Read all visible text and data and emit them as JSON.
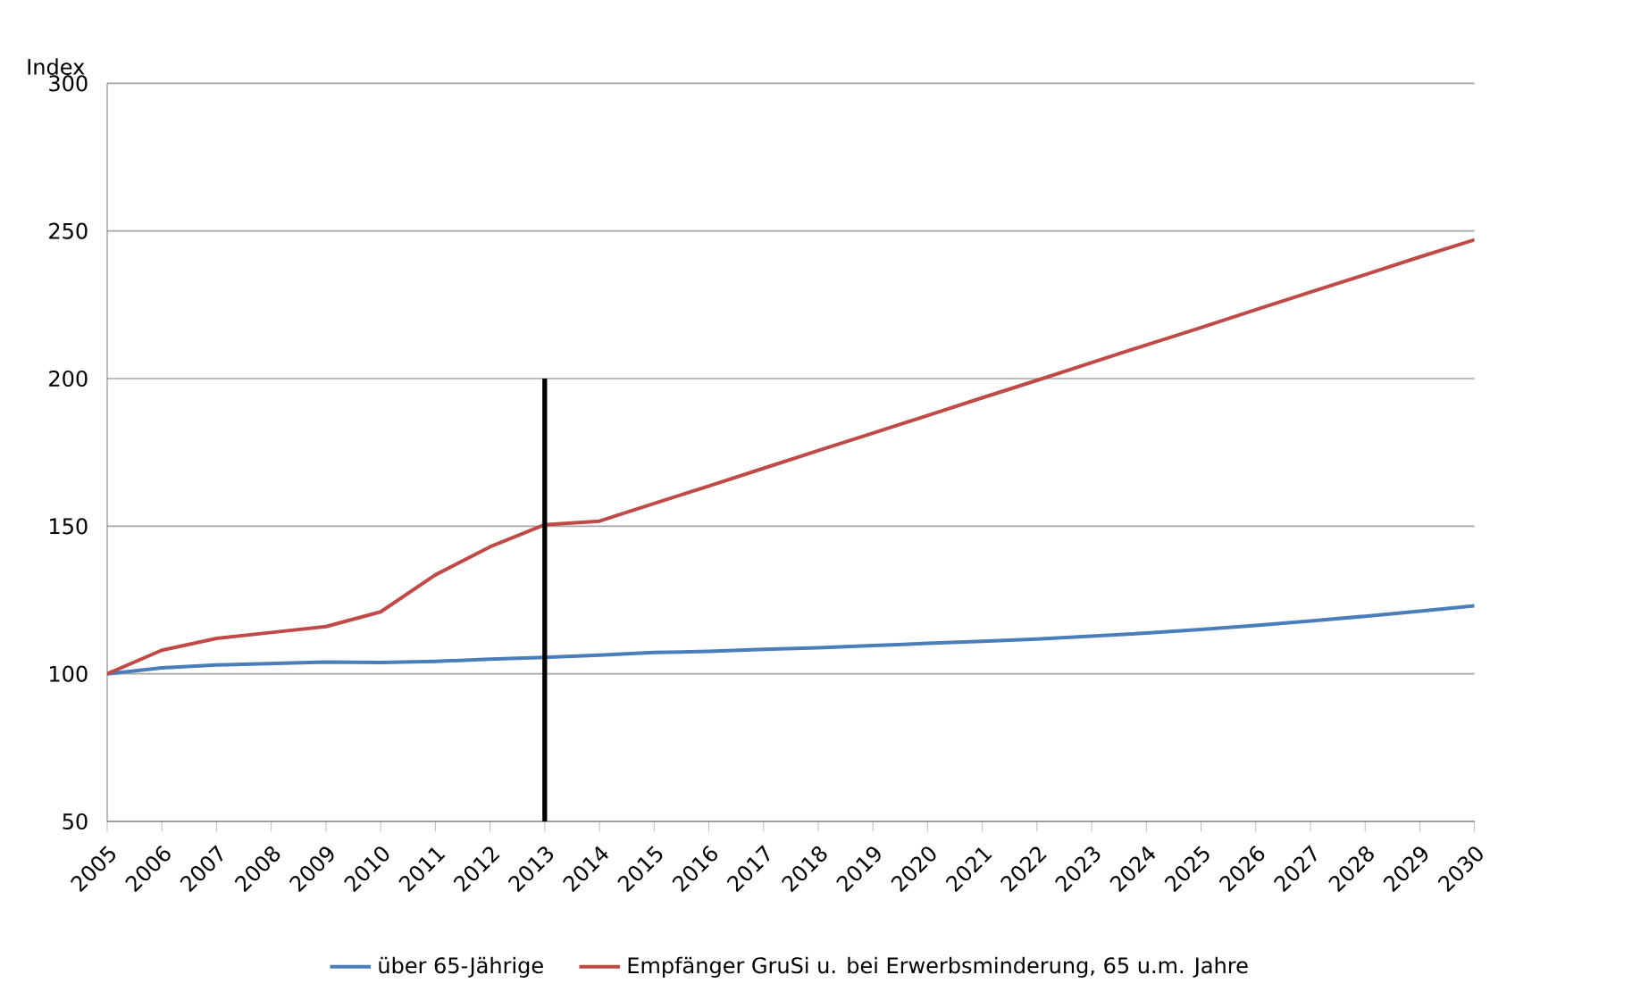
{
  "chart_data": {
    "type": "line",
    "ylabel": "Index",
    "x": [
      2005,
      2006,
      2007,
      2008,
      2009,
      2010,
      2011,
      2012,
      2013,
      2014,
      2015,
      2016,
      2017,
      2018,
      2019,
      2020,
      2021,
      2022,
      2023,
      2024,
      2025,
      2026,
      2027,
      2028,
      2029,
      2030
    ],
    "series": [
      {
        "name": "über 65-Jährige",
        "color": "#4a7ebb",
        "values": [
          100,
          102,
          103,
          103.5,
          104,
          103.8,
          104.2,
          105,
          105.6,
          106.3,
          107.2,
          107.6,
          108.3,
          108.8,
          109.6,
          110.3,
          111,
          111.8,
          112.8,
          113.8,
          115,
          116.4,
          117.9,
          119.5,
          121.2,
          123
        ]
      },
      {
        "name": "Empfänger GruSi u. bei Erwerbsminderung, 65 u.m. Jahre",
        "color": "#be4b48",
        "values": [
          100,
          108,
          112,
          114,
          116,
          121,
          133.5,
          143,
          150.5,
          151.7,
          157.7,
          163.6,
          169.6,
          175.6,
          181.5,
          187.5,
          193.5,
          199.4,
          205.4,
          211.4,
          217.3,
          223.3,
          229.3,
          235.2,
          241.2,
          247
        ]
      },
      {
        "type": "line",
        "color": "#000000",
        "x": [
          2013,
          2013
        ],
        "values": [
          50,
          200
        ]
      }
    ],
    "xlim": [
      2005,
      2030
    ],
    "ylim": [
      50,
      300
    ],
    "xticks": [
      2005,
      2006,
      2007,
      2008,
      2009,
      2010,
      2011,
      2012,
      2013,
      2014,
      2015,
      2016,
      2017,
      2018,
      2019,
      2020,
      2021,
      2022,
      2023,
      2024,
      2025,
      2026,
      2027,
      2028,
      2029,
      2030
    ],
    "yticks": [
      50,
      100,
      150,
      200,
      250,
      300
    ],
    "grid": "y",
    "legend": "bottom",
    "marker": "none",
    "line_style": "solid"
  }
}
